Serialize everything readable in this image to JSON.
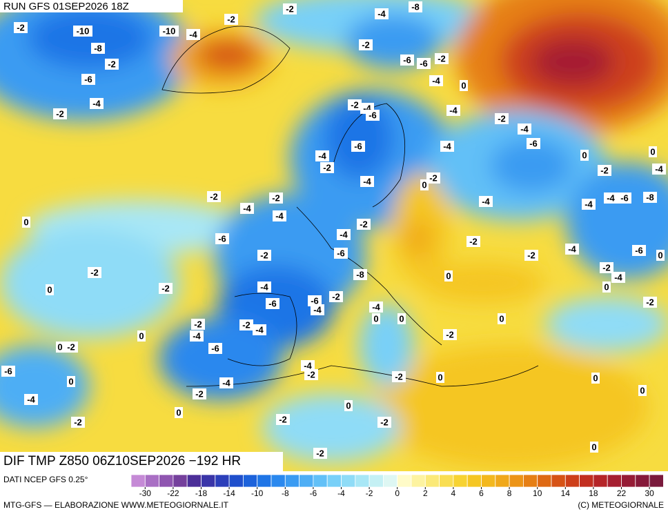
{
  "header": {
    "title": "RUN GFS 01SEP2026 18Z"
  },
  "map": {
    "contour_labels": [
      -2,
      -10,
      -8,
      -2,
      -6,
      -4,
      -2,
      -2,
      -2,
      -4,
      -8,
      -10,
      -4,
      -2,
      -6,
      -6,
      -2,
      -4,
      0,
      -2,
      -4,
      -6,
      -4,
      -2,
      -4,
      -6,
      -4,
      -6,
      -4,
      -2,
      -4,
      0,
      -2,
      0,
      -2,
      -4,
      0,
      -2,
      -2,
      -4,
      -4,
      -4,
      -4,
      -4,
      -6,
      -8,
      0,
      -2,
      -4,
      -6,
      -2,
      -2,
      -4,
      -6,
      0,
      -2,
      -6,
      -8,
      -2,
      0,
      -2,
      -4,
      0,
      -2,
      0,
      -4,
      -6,
      -4,
      -2,
      -6,
      -4,
      -2,
      0,
      0,
      0,
      -2,
      -2,
      -4,
      -4,
      0,
      -2,
      0,
      -2,
      -6,
      -6,
      -4,
      -2,
      -2,
      0,
      0,
      0,
      -4,
      -2,
      0,
      -4,
      0,
      0,
      -2,
      -2,
      -2,
      0,
      -2
    ],
    "product": "DIF TMP Z850 06Z10SEP2026 −192 HR"
  },
  "legend": {
    "source": "DATI NCEP GFS 0.25°",
    "ticks": [
      -30,
      -22,
      -18,
      -14,
      -10,
      -8,
      -6,
      -4,
      -2,
      0,
      2,
      4,
      6,
      8,
      10,
      14,
      18,
      22,
      30
    ],
    "colors": [
      "#c58ad6",
      "#a96fc4",
      "#8f55b0",
      "#75409c",
      "#4c2f99",
      "#3a35a8",
      "#2c3fba",
      "#1f4fcc",
      "#1c62db",
      "#1f75e6",
      "#2a88ee",
      "#3a9bf2",
      "#4eaef5",
      "#62c0f7",
      "#78d0f8",
      "#8fdcf7",
      "#a8e7f6",
      "#c4f0f4",
      "#def7f3",
      "#fffbc8",
      "#fdf3a0",
      "#fbe978",
      "#f9de52",
      "#f7d332",
      "#f5c623",
      "#f3b81e",
      "#f0a81a",
      "#ec9417",
      "#e67f15",
      "#de6914",
      "#d65316",
      "#cd3f1a",
      "#c22f20",
      "#b52528",
      "#a61f30",
      "#961c36",
      "#861a3a",
      "#7a1a3c"
    ]
  },
  "footer": {
    "credits": "MTG-GFS — ELABORAZIONE WWW.METEOGIORNALE.IT",
    "copyright": "(C) METEOGIORNALE"
  }
}
